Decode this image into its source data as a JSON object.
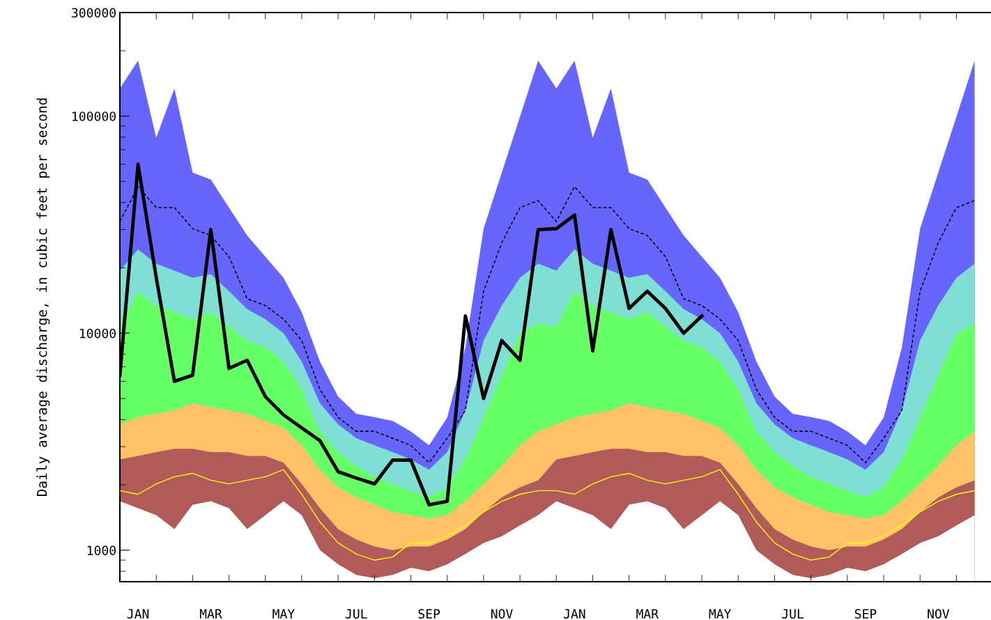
{
  "chart_data": {
    "type": "area",
    "ylabel": "Daily average discharge, in cubic feet per second",
    "log": "y",
    "grid": false,
    "legend": false,
    "ylim": [
      716,
      300000
    ],
    "yticks": [
      1000,
      10000,
      100000,
      300000
    ],
    "categories": [
      null,
      "JAN",
      null,
      null,
      null,
      "MAR",
      null,
      null,
      null,
      "MAY",
      null,
      null,
      null,
      "JUL",
      null,
      null,
      null,
      "SEP",
      null,
      null,
      null,
      "NOV",
      null,
      null,
      null,
      "JAN",
      null,
      null,
      null,
      "MAR",
      null,
      null,
      null,
      "MAY",
      null,
      null,
      null,
      "JUL",
      null,
      null,
      null,
      "SEP",
      null,
      null,
      null,
      "NOV",
      null,
      null
    ],
    "series": [
      {
        "color": "#6666ff",
        "values": [
          134000,
          180000,
          79500,
          134000,
          54900,
          51000,
          37900,
          28200,
          22500,
          18000,
          12500,
          7400,
          5100,
          4250,
          4100,
          3940,
          3530,
          3040,
          4090,
          8590,
          30300,
          54900,
          99300,
          180000,
          134000,
          180000,
          79500,
          134000,
          54900,
          51000,
          37900,
          28200,
          22500,
          18000,
          12500,
          7400,
          5100,
          4250,
          4100,
          3940,
          3530,
          3040,
          4090,
          8590,
          30300,
          54900,
          99300,
          180000
        ]
      },
      {
        "color": "#7fdfd4",
        "values": [
          19400,
          24300,
          20900,
          19400,
          18000,
          18700,
          15600,
          12900,
          11600,
          10000,
          7400,
          4750,
          3800,
          3280,
          3040,
          2830,
          2620,
          2350,
          2830,
          4410,
          9250,
          13400,
          18000,
          20900,
          19400,
          24300,
          20900,
          19400,
          18000,
          18700,
          15600,
          12900,
          11600,
          10000,
          7400,
          4750,
          3800,
          3280,
          3040,
          2830,
          2620,
          2350,
          2830,
          4410,
          9250,
          13400,
          18000,
          20900
        ]
      },
      {
        "color": "#66ff66",
        "values": [
          10700,
          15600,
          13400,
          12500,
          11600,
          12500,
          10700,
          9250,
          8590,
          7400,
          5510,
          3530,
          2830,
          2440,
          2180,
          2020,
          1880,
          1750,
          1950,
          2620,
          4090,
          6390,
          9970,
          11100,
          10700,
          15600,
          13400,
          12500,
          11600,
          12500,
          10700,
          9250,
          8590,
          7400,
          5510,
          3530,
          2830,
          2440,
          2180,
          2020,
          1880,
          1750,
          1950,
          2620,
          4090,
          6390,
          9970,
          11100
        ]
      },
      {
        "color": "#ffc266",
        "values": [
          3800,
          4090,
          4250,
          4410,
          4750,
          4570,
          4410,
          4250,
          3940,
          3660,
          3040,
          2340,
          1950,
          1750,
          1620,
          1500,
          1450,
          1400,
          1450,
          1680,
          2020,
          2440,
          3040,
          3530,
          3800,
          4090,
          4250,
          4410,
          4750,
          4570,
          4410,
          4250,
          3940,
          3660,
          3040,
          2340,
          1950,
          1750,
          1620,
          1500,
          1450,
          1400,
          1450,
          1680,
          2020,
          2440,
          3040,
          3530
        ]
      },
      {
        "color": "#b05a5a",
        "values": [
          2620,
          2720,
          2830,
          2930,
          2930,
          2830,
          2830,
          2720,
          2720,
          2530,
          2020,
          1560,
          1250,
          1120,
          1040,
          1000,
          1040,
          1040,
          1120,
          1250,
          1500,
          1750,
          1950,
          2100,
          2620,
          2720,
          2830,
          2930,
          2930,
          2830,
          2830,
          2720,
          2720,
          2530,
          2020,
          1560,
          1250,
          1120,
          1040,
          1000,
          1040,
          1040,
          1120,
          1250,
          1500,
          1750,
          1950,
          2100
        ]
      },
      {
        "color": "#ffffff",
        "values": [
          1680,
          1560,
          1450,
          1250,
          1620,
          1680,
          1560,
          1250,
          1450,
          1680,
          1450,
          1000,
          862,
          770,
          743,
          770,
          830,
          800,
          862,
          960,
          1080,
          1160,
          1300,
          1450,
          1680,
          1560,
          1450,
          1250,
          1620,
          1680,
          1560,
          1250,
          1450,
          1680,
          1450,
          1000,
          862,
          770,
          743,
          770,
          830,
          800,
          862,
          960,
          1080,
          1160,
          1300,
          1450
        ]
      },
      {
        "type": "line",
        "color": "#ffff00",
        "values": [
          1880,
          1810,
          2020,
          2180,
          2260,
          2100,
          2020,
          2100,
          2180,
          2350,
          1810,
          1350,
          1080,
          960,
          900,
          930,
          1080,
          1080,
          1160,
          1300,
          1500,
          1680,
          1810,
          1880,
          1880,
          1810,
          2020,
          2180,
          2260,
          2100,
          2020,
          2100,
          2180,
          2350,
          1810,
          1350,
          1080,
          960,
          900,
          930,
          1080,
          1080,
          1160,
          1300,
          1500,
          1680,
          1810,
          1880
        ]
      },
      {
        "type": "line",
        "color": "#000000",
        "line_style": "dashed",
        "values": [
          32700,
          47300,
          37900,
          37900,
          30300,
          28200,
          22500,
          14400,
          13400,
          11600,
          9250,
          5510,
          4090,
          3530,
          3530,
          3280,
          3040,
          2530,
          3280,
          4410,
          15600,
          26100,
          37900,
          40800,
          32700,
          47300,
          37900,
          37900,
          30300,
          28200,
          22500,
          14400,
          13400,
          11600,
          9250,
          5510,
          4090,
          3530,
          3530,
          3280,
          3040,
          2530,
          3280,
          4410,
          15600,
          26100,
          37900,
          40800
        ]
      },
      {
        "type": "line",
        "color": "#000000",
        "line_style": "solid",
        "values": [
          6390,
          60000,
          18000,
          6000,
          6400,
          30000,
          6880,
          7500,
          5100,
          4200,
          3660,
          3200,
          2300,
          2150,
          2020,
          2600,
          2600,
          1620,
          1680,
          12000,
          5000,
          9250,
          7500,
          30000,
          30300,
          35000,
          8280,
          30000,
          13000,
          15600,
          13000,
          10000,
          12000,
          null,
          null,
          null,
          null,
          null,
          null,
          null,
          null,
          null,
          null,
          null,
          null,
          null,
          null,
          null
        ]
      }
    ]
  }
}
